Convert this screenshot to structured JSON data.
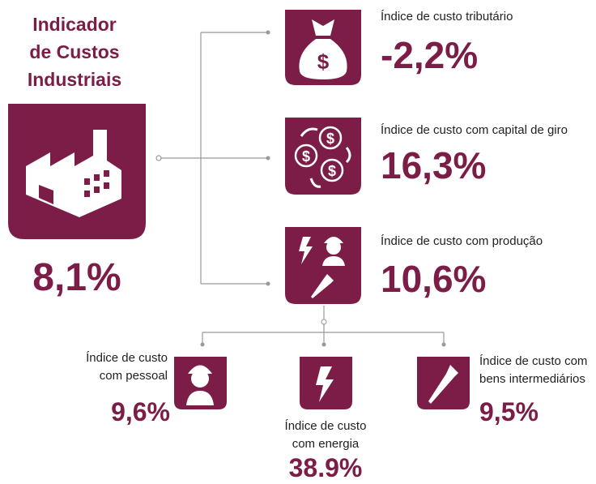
{
  "title": [
    "Indicador",
    "de Custos",
    "Industriais"
  ],
  "main_value": "8,1%",
  "components": [
    {
      "label": [
        "Índice de custo tributário"
      ],
      "value": "-2,2%"
    },
    {
      "label": [
        "Índice de custo com capital de giro"
      ],
      "value": "16,3%"
    },
    {
      "label": [
        "Índice de custo com produção"
      ],
      "value": "10,6%"
    }
  ],
  "production_components": [
    {
      "label": [
        "Índice de custo",
        "com pessoal"
      ],
      "value": "9,6%"
    },
    {
      "label": [
        "Índice de custo",
        "com energia"
      ],
      "value": "38.9%"
    },
    {
      "label": [
        "Índice de custo com",
        "bens intermediários"
      ],
      "value": "9,5%"
    }
  ]
}
